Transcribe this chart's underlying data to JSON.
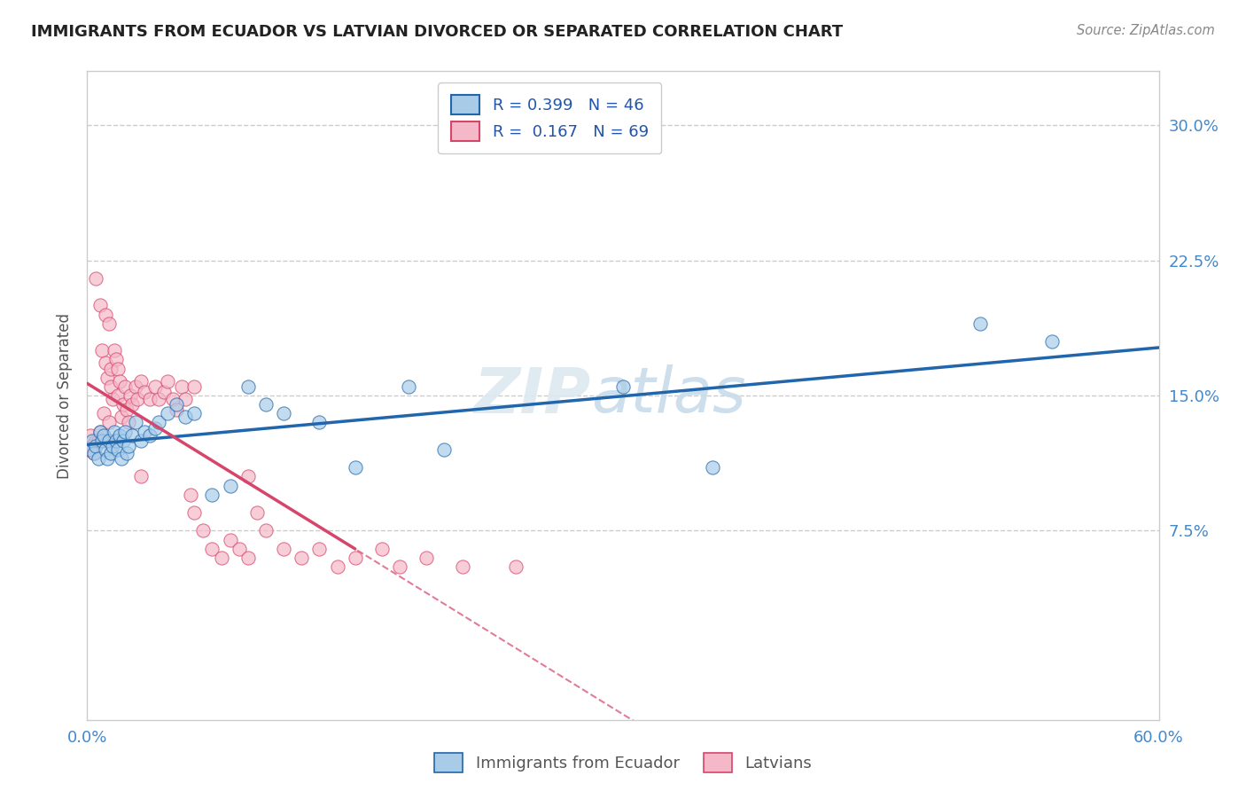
{
  "title": "IMMIGRANTS FROM ECUADOR VS LATVIAN DIVORCED OR SEPARATED CORRELATION CHART",
  "source_text": "Source: ZipAtlas.com",
  "ylabel": "Divorced or Separated",
  "xlim": [
    0.0,
    0.6
  ],
  "ylim": [
    -0.03,
    0.33
  ],
  "yticks": [
    0.075,
    0.15,
    0.225,
    0.3
  ],
  "ytick_labels": [
    "7.5%",
    "15.0%",
    "22.5%",
    "30.0%"
  ],
  "legend_r_blue": "R = 0.399",
  "legend_n_blue": "N = 46",
  "legend_r_pink": "R = 0.167",
  "legend_n_pink": "N = 69",
  "blue_color": "#a8cce8",
  "pink_color": "#f4b8c8",
  "line_blue": "#2166ac",
  "line_pink": "#d6456a",
  "blue_scatter_x": [
    0.002,
    0.003,
    0.004,
    0.005,
    0.006,
    0.007,
    0.008,
    0.009,
    0.01,
    0.011,
    0.012,
    0.013,
    0.014,
    0.015,
    0.016,
    0.017,
    0.018,
    0.019,
    0.02,
    0.021,
    0.022,
    0.023,
    0.025,
    0.027,
    0.03,
    0.032,
    0.035,
    0.038,
    0.04,
    0.045,
    0.05,
    0.055,
    0.06,
    0.07,
    0.08,
    0.09,
    0.1,
    0.11,
    0.13,
    0.15,
    0.18,
    0.2,
    0.3,
    0.35,
    0.5,
    0.54
  ],
  "blue_scatter_y": [
    0.12,
    0.125,
    0.118,
    0.122,
    0.115,
    0.13,
    0.125,
    0.128,
    0.12,
    0.115,
    0.125,
    0.118,
    0.122,
    0.13,
    0.125,
    0.12,
    0.128,
    0.115,
    0.125,
    0.13,
    0.118,
    0.122,
    0.128,
    0.135,
    0.125,
    0.13,
    0.128,
    0.132,
    0.135,
    0.14,
    0.145,
    0.138,
    0.14,
    0.095,
    0.1,
    0.155,
    0.145,
    0.14,
    0.135,
    0.11,
    0.155,
    0.12,
    0.155,
    0.11,
    0.19,
    0.18
  ],
  "pink_scatter_x": [
    0.001,
    0.002,
    0.003,
    0.004,
    0.005,
    0.005,
    0.006,
    0.007,
    0.007,
    0.008,
    0.008,
    0.009,
    0.01,
    0.01,
    0.011,
    0.012,
    0.012,
    0.013,
    0.013,
    0.014,
    0.015,
    0.015,
    0.016,
    0.017,
    0.017,
    0.018,
    0.019,
    0.02,
    0.021,
    0.022,
    0.023,
    0.024,
    0.025,
    0.027,
    0.028,
    0.03,
    0.032,
    0.035,
    0.038,
    0.04,
    0.043,
    0.045,
    0.048,
    0.05,
    0.053,
    0.055,
    0.058,
    0.06,
    0.065,
    0.07,
    0.075,
    0.08,
    0.085,
    0.09,
    0.095,
    0.1,
    0.11,
    0.12,
    0.13,
    0.14,
    0.15,
    0.165,
    0.175,
    0.19,
    0.21,
    0.24,
    0.03,
    0.06,
    0.09
  ],
  "pink_scatter_y": [
    0.12,
    0.128,
    0.122,
    0.118,
    0.125,
    0.215,
    0.125,
    0.13,
    0.2,
    0.175,
    0.125,
    0.14,
    0.168,
    0.195,
    0.16,
    0.135,
    0.19,
    0.155,
    0.165,
    0.148,
    0.175,
    0.125,
    0.17,
    0.15,
    0.165,
    0.158,
    0.138,
    0.145,
    0.155,
    0.142,
    0.135,
    0.15,
    0.145,
    0.155,
    0.148,
    0.158,
    0.152,
    0.148,
    0.155,
    0.148,
    0.152,
    0.158,
    0.148,
    0.142,
    0.155,
    0.148,
    0.095,
    0.085,
    0.075,
    0.065,
    0.06,
    0.07,
    0.065,
    0.06,
    0.085,
    0.075,
    0.065,
    0.06,
    0.065,
    0.055,
    0.06,
    0.065,
    0.055,
    0.06,
    0.055,
    0.055,
    0.105,
    0.155,
    0.105
  ]
}
